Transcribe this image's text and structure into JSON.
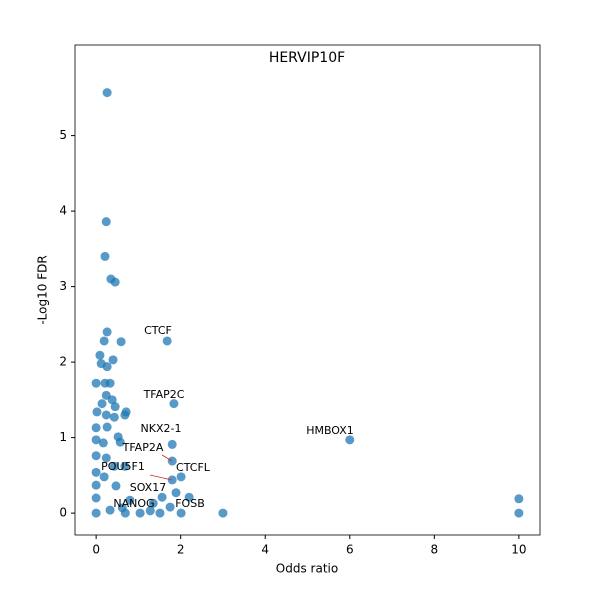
{
  "chart_data": {
    "type": "scatter",
    "title": "HERVIP10F",
    "x_label": "Odds ratio",
    "y_label": "-Log10 FDR",
    "color": "#1f77b4",
    "x": [
      0.26,
      0.24,
      0.21,
      0.35,
      0.45,
      0.26,
      1.68,
      0.19,
      0.59,
      0.09,
      0.4,
      0.12,
      0.26,
      0,
      0.21,
      0.33,
      0.24,
      0.38,
      1.84,
      0.14,
      0.45,
      0.71,
      0.02,
      0.24,
      0.68,
      0.43,
      0,
      0.26,
      6.0,
      1.8,
      0,
      0.52,
      0.57,
      0.17,
      1.8,
      0,
      0.24,
      0.68,
      0.43,
      0,
      2.01,
      1.8,
      0.19,
      0,
      0.47,
      1.89,
      2.2,
      1.56,
      0,
      10,
      0.8,
      1.35,
      1.75,
      0,
      2.01,
      3.0,
      10,
      1.04,
      0.33,
      0.62,
      1.28,
      0.69,
      1.51
    ],
    "y": [
      5.57,
      3.86,
      3.4,
      3.1,
      3.06,
      2.4,
      2.28,
      2.28,
      2.27,
      2.09,
      2.03,
      1.98,
      1.94,
      1.72,
      1.72,
      1.72,
      1.56,
      1.5,
      1.45,
      1.45,
      1.41,
      1.34,
      1.34,
      1.3,
      1.3,
      1.27,
      1.13,
      1.14,
      0.97,
      0.91,
      0.97,
      1.01,
      0.94,
      0.93,
      0.69,
      0.76,
      0.73,
      0.62,
      0.62,
      0.54,
      0.48,
      0.44,
      0.48,
      0.37,
      0.36,
      0.27,
      0.21,
      0.21,
      0.2,
      0.19,
      0.17,
      0.13,
      0.08,
      0,
      0,
      0,
      0,
      0,
      0.04,
      0.07,
      0.03,
      0,
      0
    ],
    "annotations": [
      "CTCF",
      "TFAP2C",
      "NKX2-1",
      "TFAP2A",
      "POU5F1",
      "SOX17",
      "NANOG",
      "FOSB",
      "CTCFL",
      "HMBOX1"
    ],
    "xlim": [
      -0.5,
      10.5
    ],
    "ylim": [
      -0.29,
      6.2
    ],
    "xticks": [
      0,
      2,
      4,
      6,
      8,
      10
    ],
    "yticks": [
      0,
      1,
      2,
      3,
      4,
      5
    ]
  }
}
